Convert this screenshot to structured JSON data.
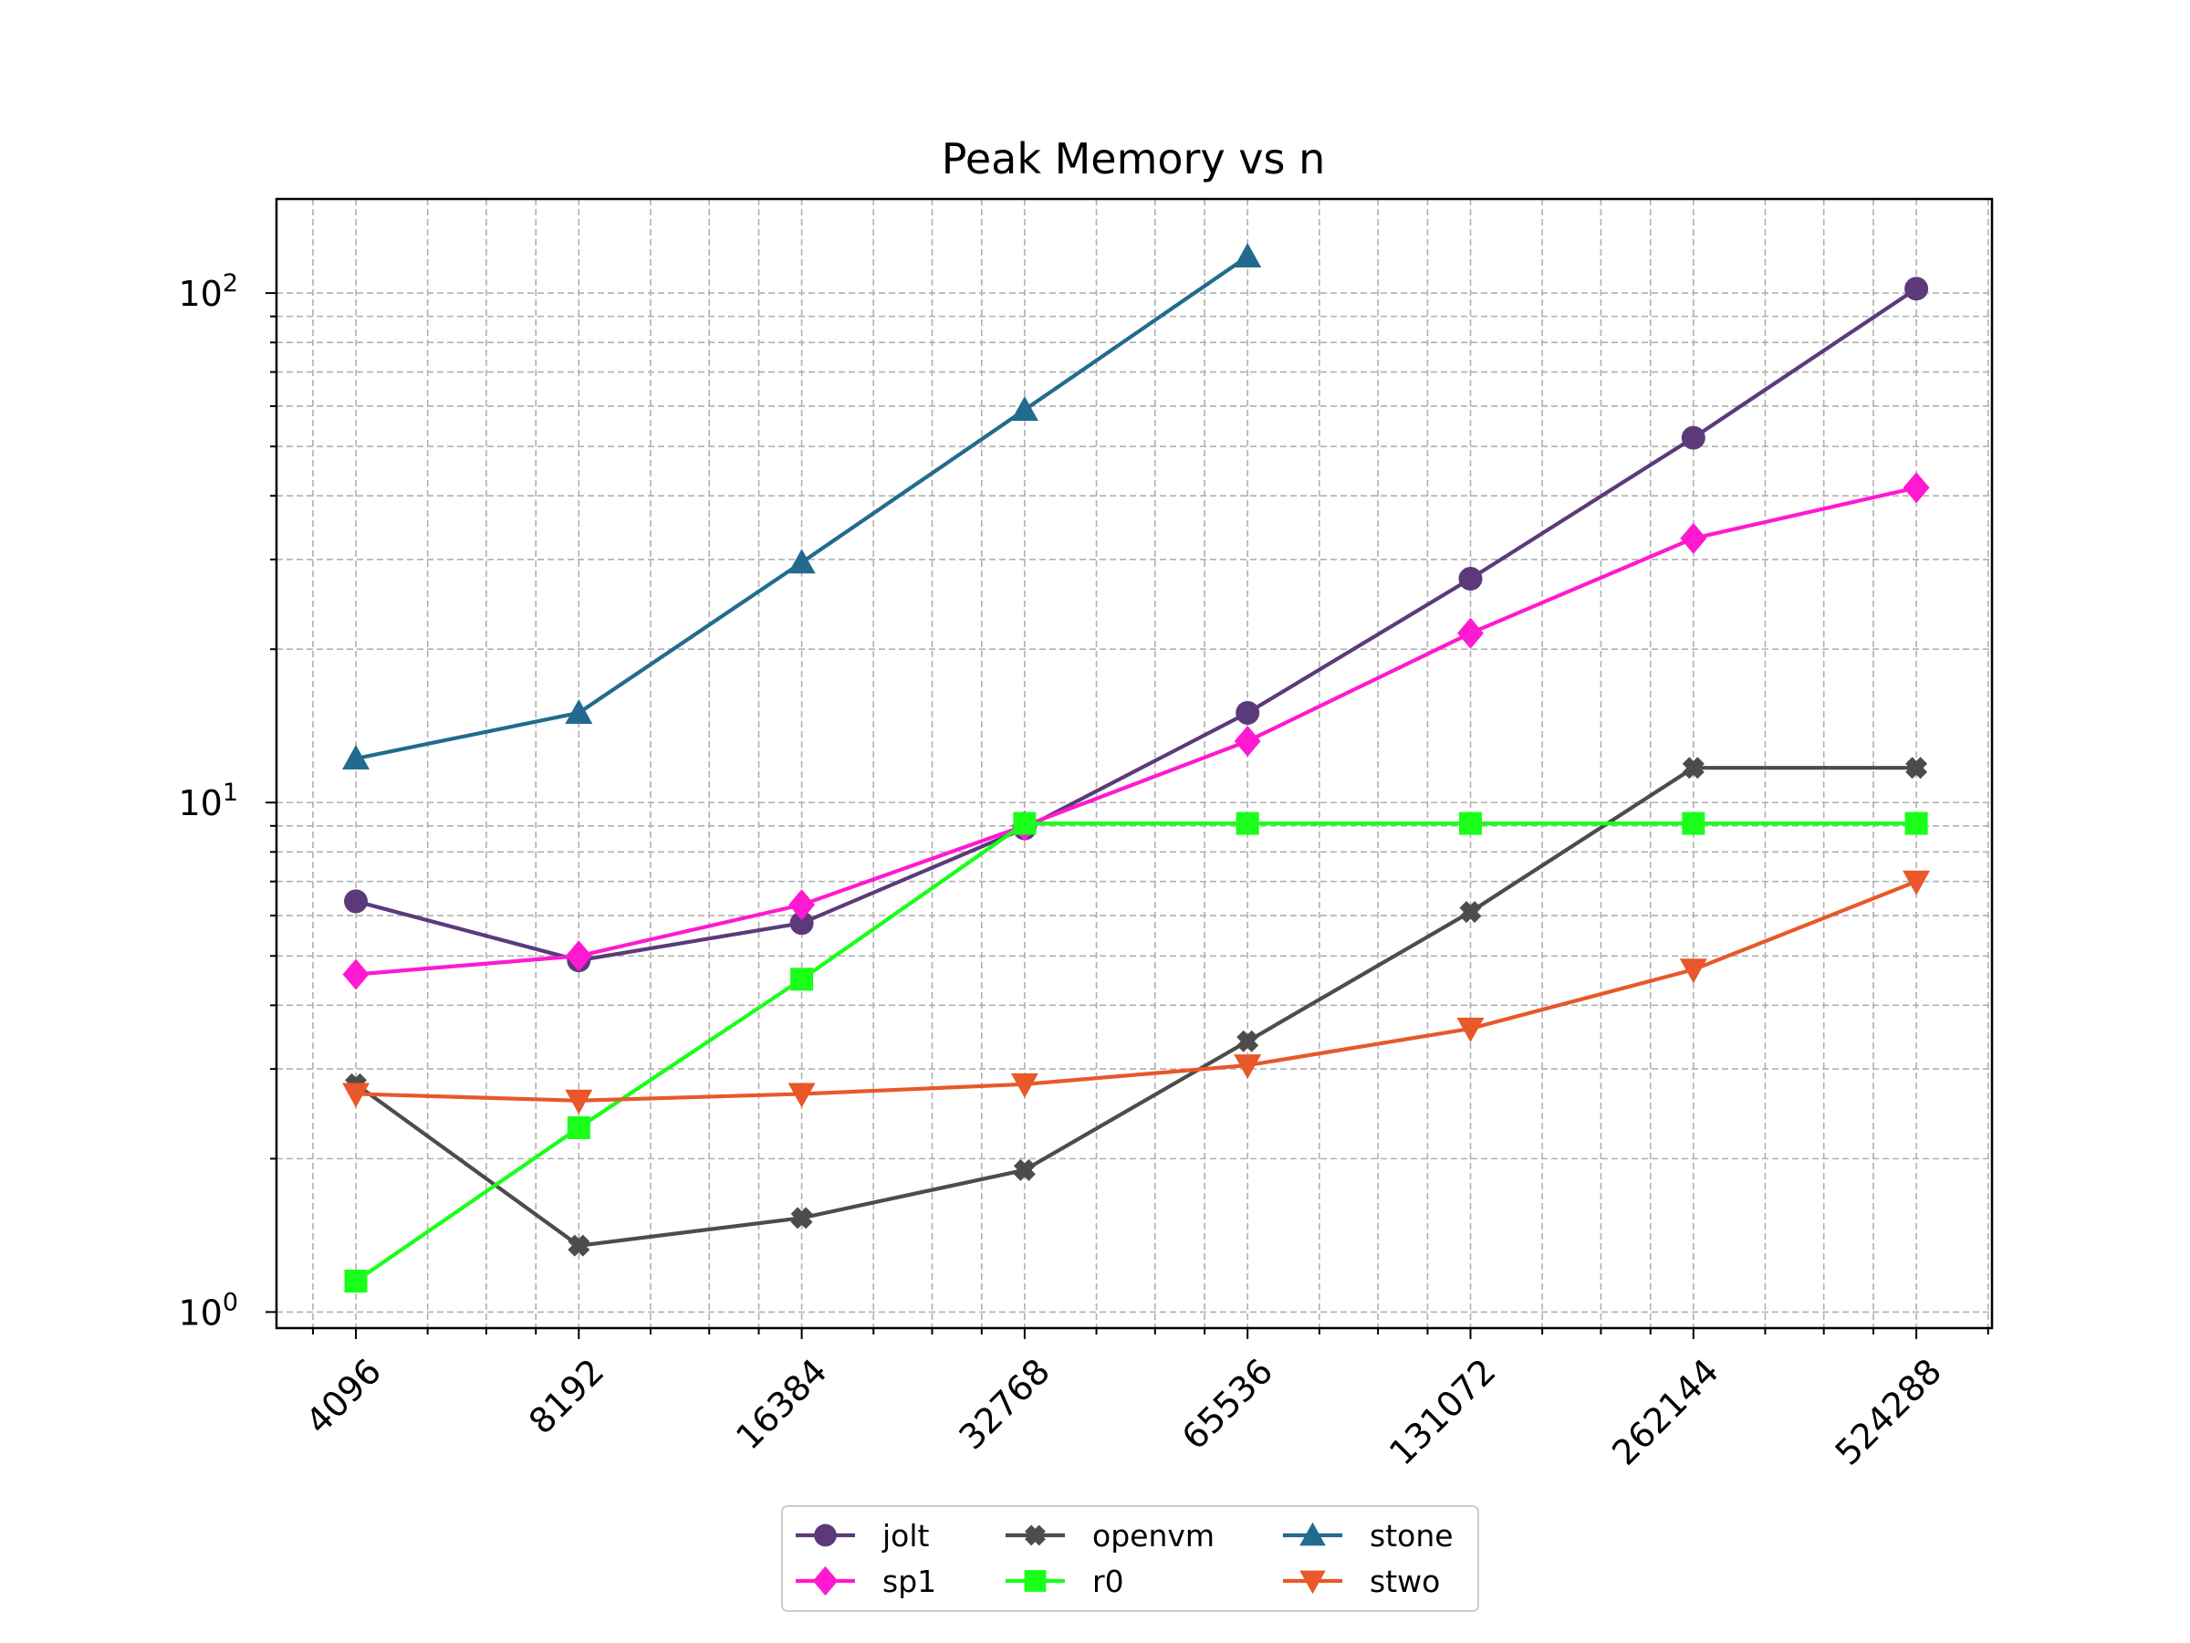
{
  "chart_data": {
    "type": "line",
    "title": "Peak Memory vs n",
    "xlabel": "",
    "ylabel": "",
    "x_scale": "log2",
    "y_scale": "log10",
    "x": [
      4096,
      8192,
      16384,
      32768,
      65536,
      131072,
      262144,
      524288
    ],
    "x_tick_labels": [
      "4096",
      "8192",
      "16384",
      "32768",
      "65536",
      "131072",
      "262144",
      "524288"
    ],
    "y_ticks": [
      1,
      10,
      100
    ],
    "y_tick_labels": [
      {
        "base": "10",
        "exp": "0"
      },
      {
        "base": "10",
        "exp": "1"
      },
      {
        "base": "10",
        "exp": "2"
      }
    ],
    "ylim": [
      0.93,
      153
    ],
    "grid": true,
    "legend_position": "bottom-center",
    "series": [
      {
        "name": "jolt",
        "color": "#5c3a7a",
        "marker": "circle",
        "values": [
          6.4,
          4.9,
          5.8,
          8.9,
          15.0,
          27.5,
          52.0,
          102.0
        ]
      },
      {
        "name": "sp1",
        "color": "#ff19d0",
        "marker": "diamond",
        "values": [
          4.6,
          5.0,
          6.3,
          9.0,
          13.2,
          21.5,
          33.0,
          41.5
        ]
      },
      {
        "name": "openvm",
        "color": "#4c4c4c",
        "marker": "x",
        "values": [
          2.8,
          1.35,
          1.53,
          1.9,
          3.4,
          6.1,
          11.7,
          11.7
        ]
      },
      {
        "name": "r0",
        "color": "#19ff19",
        "marker": "square",
        "values": [
          1.15,
          2.3,
          4.5,
          9.1,
          9.1,
          9.1,
          9.1,
          9.1
        ]
      },
      {
        "name": "stone",
        "color": "#226b8f",
        "marker": "triangle-up",
        "values": [
          12.2,
          15.0,
          29.6,
          59.0,
          118.0,
          null,
          null,
          null
        ]
      },
      {
        "name": "stwo",
        "color": "#e8582a",
        "marker": "triangle-down",
        "values": [
          2.68,
          2.6,
          2.68,
          2.8,
          3.05,
          3.6,
          4.7,
          7.0
        ]
      }
    ]
  }
}
